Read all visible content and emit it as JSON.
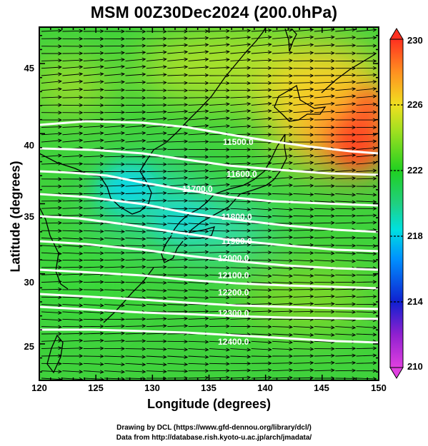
{
  "title": "MSM 00Z30Dec2024 (200.0hPa)",
  "x_axis": {
    "label": "Longitude (degrees)",
    "range": [
      120,
      150
    ],
    "ticks": [
      "120",
      "125",
      "130",
      "135",
      "140",
      "145",
      "150"
    ]
  },
  "y_axis": {
    "label": "Latitude  (degrees)",
    "range": [
      22.4,
      47.6
    ],
    "ticks": [
      "25",
      "30",
      "35",
      "40",
      "45"
    ]
  },
  "colorbar": {
    "range": [
      210,
      230
    ],
    "ticks": [
      "210",
      "214",
      "218",
      "222",
      "226",
      "230"
    ],
    "colors": [
      "#e040e0",
      "#1020d0",
      "#00e0e0",
      "#20d020",
      "#f0e020",
      "#ff3020"
    ]
  },
  "contours": {
    "color": "#ffffff",
    "labels": [
      "11500.0",
      "11600.0",
      "11700.0",
      "11800.0",
      "11900.0",
      "12000.0",
      "12100.0",
      "12200.0",
      "12300.0",
      "12400.0"
    ]
  },
  "wind_field": {
    "style": "black vector arrows",
    "direction": "westerly",
    "rows": 48,
    "columns": 16
  },
  "background_field": {
    "mostly": "green",
    "cold_core": "cyan over Yellow Sea / Korea",
    "warm_region": "orange-red east of Hokkaido"
  },
  "credits": {
    "line1": "Drawing by DCL (https://www.gfd-dennou.org/library/dcl/)",
    "line2": "Data from http://database.rish.kyoto-u.ac.jp/arch/jmadata/"
  }
}
